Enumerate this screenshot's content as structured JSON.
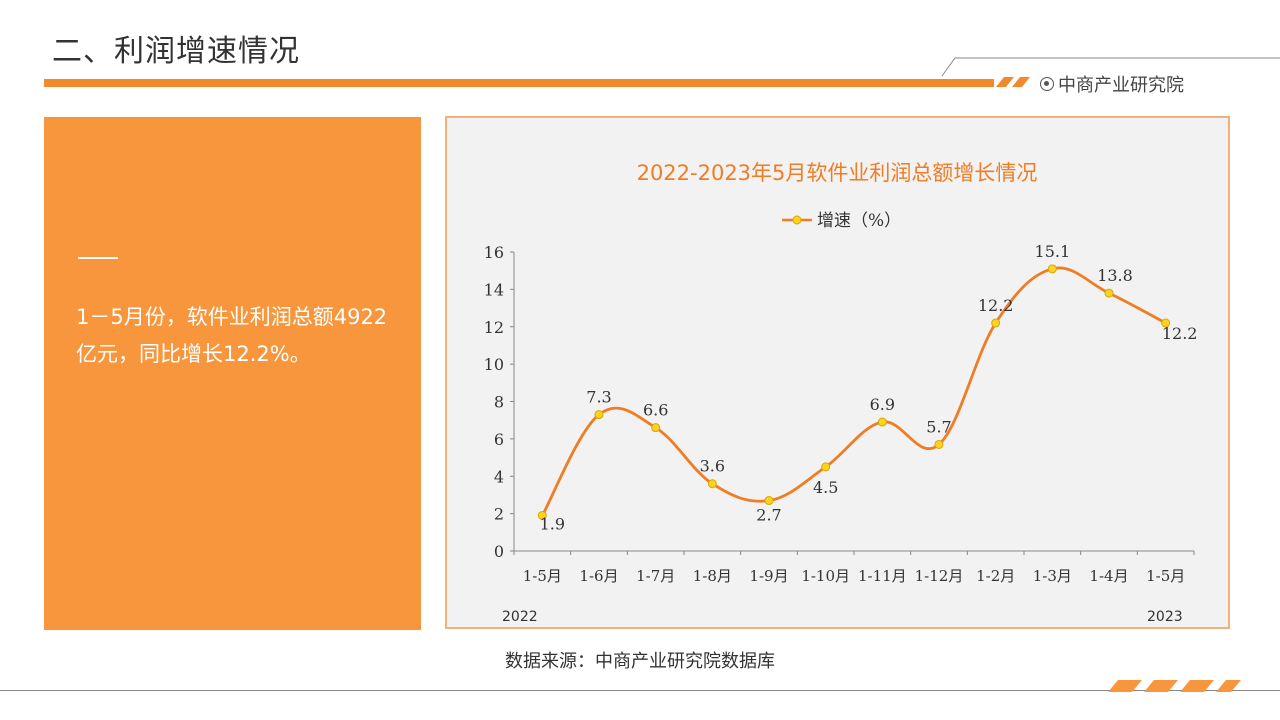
{
  "header": {
    "title": "二、利润增速情况",
    "brand": "中商产业研究院"
  },
  "left_panel": {
    "text": "1－5月份，软件业利润总额4922亿元，同比增长12.2%。"
  },
  "chart_data": {
    "type": "line",
    "title": "2022-2023年5月软件业利润总额增长情况",
    "legend_position": "top-center",
    "x": [
      "1-5月",
      "1-6月",
      "1-7月",
      "1-8月",
      "1-9月",
      "1-10月",
      "1-11月",
      "1-12月",
      "1-2月",
      "1-3月",
      "1-4月",
      "1-5月"
    ],
    "series": [
      {
        "name": "增速（%）",
        "values": [
          1.9,
          7.3,
          6.6,
          3.6,
          2.7,
          4.5,
          6.9,
          5.7,
          12.2,
          15.1,
          13.8,
          12.2
        ]
      }
    ],
    "data_labels": [
      "1.9",
      "7.3",
      "6.6",
      "3.6",
      "2.7",
      "4.5",
      "6.9",
      "5.7",
      "12.2",
      "15.1",
      "13.8",
      "12.2"
    ],
    "year_labels": [
      "2022",
      "2023"
    ],
    "ylim": [
      0,
      16
    ],
    "yticks": [
      0,
      2,
      4,
      6,
      8,
      10,
      12,
      14,
      16
    ],
    "grid": false,
    "line_color": "#f07c24",
    "marker_color": "#ffd21f"
  },
  "footer": {
    "source": "数据来源：中商产业研究院数据库"
  }
}
